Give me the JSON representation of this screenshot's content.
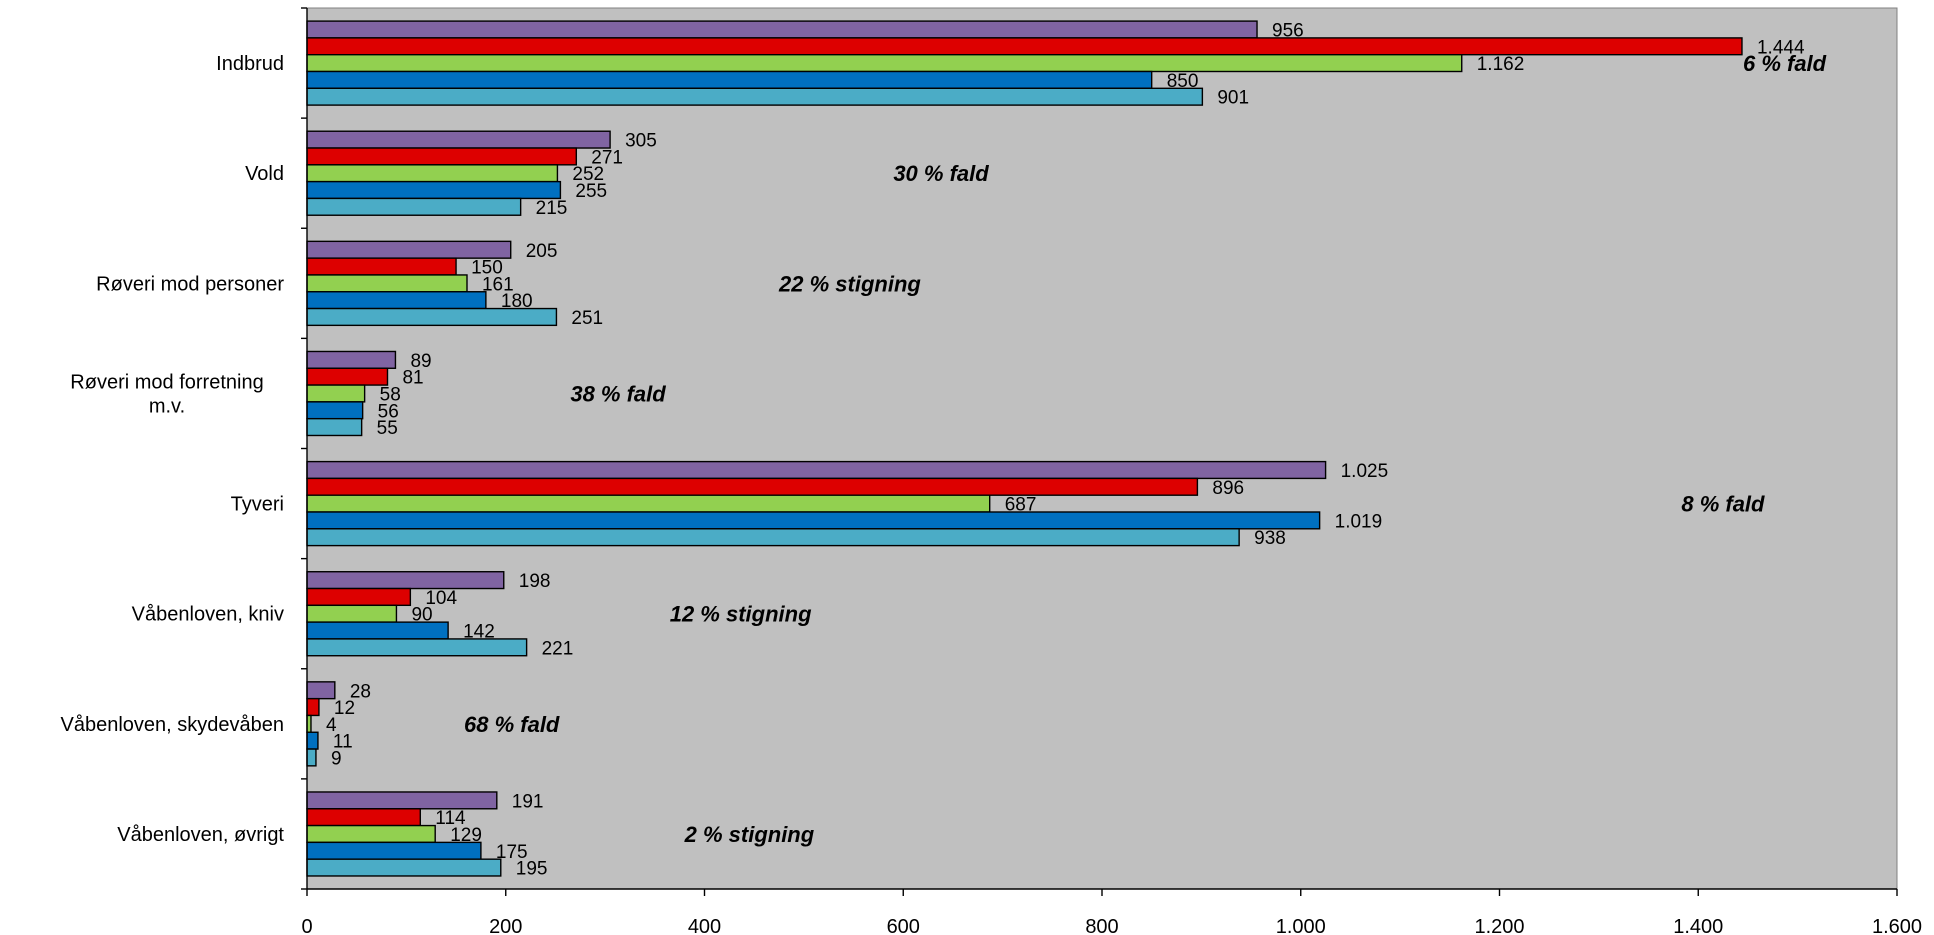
{
  "chart_data": {
    "type": "bar",
    "orientation": "horizontal",
    "background": "#c0c0c0",
    "xlim": [
      0,
      1600
    ],
    "xticks": [
      0,
      200,
      400,
      600,
      800,
      1000,
      1200,
      1400,
      1600
    ],
    "xtick_labels": [
      "0",
      "200",
      "400",
      "600",
      "800",
      "1.000",
      "1.200",
      "1.400",
      "1.600"
    ],
    "categories": [
      "Indbrud",
      "Vold",
      "Røveri mod personer",
      "Røveri mod forretning m.v.",
      "Tyveri",
      "Våbenloven, kniv",
      "Våbenloven, skydevåben",
      "Våbenloven, øvrigt"
    ],
    "category_lines": [
      [
        "Indbrud"
      ],
      [
        "Vold"
      ],
      [
        "Røveri mod personer"
      ],
      [
        "Røveri mod forretning",
        "m.v."
      ],
      [
        "Tyveri"
      ],
      [
        "Våbenloven, kniv"
      ],
      [
        "Våbenloven, skydevåben"
      ],
      [
        "Våbenloven, øvrigt"
      ]
    ],
    "series": [
      {
        "color": "#8064a2",
        "values": [
          956,
          305,
          205,
          89,
          1025,
          198,
          28,
          191
        ],
        "labels": [
          "956",
          "305",
          "205",
          "89",
          "1.025",
          "198",
          "28",
          "191"
        ]
      },
      {
        "color": "#dd0000",
        "values": [
          1444,
          271,
          150,
          81,
          896,
          104,
          12,
          114
        ],
        "labels": [
          "1.444",
          "271",
          "150",
          "81",
          "896",
          "104",
          "12",
          "114"
        ]
      },
      {
        "color": "#92d050",
        "values": [
          1162,
          252,
          161,
          58,
          687,
          90,
          4,
          129
        ],
        "labels": [
          "1.162",
          "252",
          "161",
          "58",
          "687",
          "90",
          "4",
          "129"
        ]
      },
      {
        "color": "#0070c0",
        "values": [
          850,
          255,
          180,
          56,
          1019,
          142,
          11,
          175
        ],
        "labels": [
          "850",
          "255",
          "180",
          "56",
          "1.019",
          "142",
          "11",
          "175"
        ]
      },
      {
        "color": "#4bacc6",
        "values": [
          901,
          215,
          251,
          55,
          938,
          221,
          9,
          195
        ],
        "labels": [
          "901",
          "215",
          "251",
          "55",
          "938",
          "221",
          "9",
          "195"
        ]
      }
    ],
    "annotations": [
      {
        "text": "6 % fald",
        "category": "Indbrud",
        "x": 1445
      },
      {
        "text": "30 % fald",
        "category": "Vold",
        "x": 590
      },
      {
        "text": "22 % stigning",
        "category": "Røveri mod personer",
        "x": 475
      },
      {
        "text": "38 % fald",
        "category": "Røveri mod forretning m.v.",
        "x": 265
      },
      {
        "text": "8 % fald",
        "category": "Tyveri",
        "x": 1383
      },
      {
        "text": "12 % stigning",
        "category": "Våbenloven, kniv",
        "x": 365
      },
      {
        "text": "68 % fald",
        "category": "Våbenloven, skydevåben",
        "x": 158
      },
      {
        "text": "2 % stigning",
        "category": "Våbenloven, øvrigt",
        "x": 380
      }
    ]
  }
}
